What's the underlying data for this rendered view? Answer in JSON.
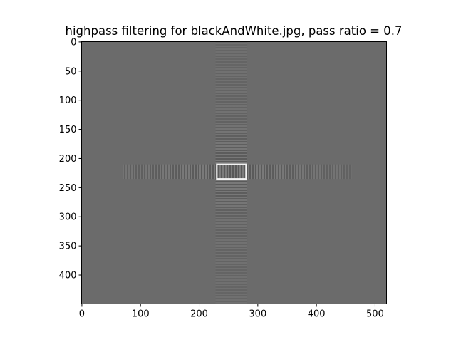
{
  "chart_data": {
    "type": "heatmap",
    "title": "highpass filtering for blackAndWhite.jpg, pass ratio = 0.7",
    "xlabel": "",
    "ylabel": "",
    "image_width": 520,
    "image_height": 450,
    "xlim": [
      -0.5,
      519.5
    ],
    "ylim": [
      449.5,
      -0.5
    ],
    "y_inverted": true,
    "xticks": [
      0,
      100,
      200,
      300,
      400,
      500
    ],
    "yticks": [
      0,
      50,
      100,
      150,
      200,
      250,
      300,
      350,
      400
    ],
    "colormap": "gray",
    "background_color": "#6b6b6b",
    "grid": false,
    "features": {
      "bright_rectangle": {
        "x": [
          230,
          280
        ],
        "y": [
          210,
          235
        ]
      },
      "vertical_ringing_band": {
        "x": [
          228,
          282
        ],
        "y": [
          0,
          449
        ]
      },
      "horizontal_ringing_band": {
        "x": [
          70,
          460
        ],
        "y": [
          210,
          235
        ]
      }
    }
  }
}
